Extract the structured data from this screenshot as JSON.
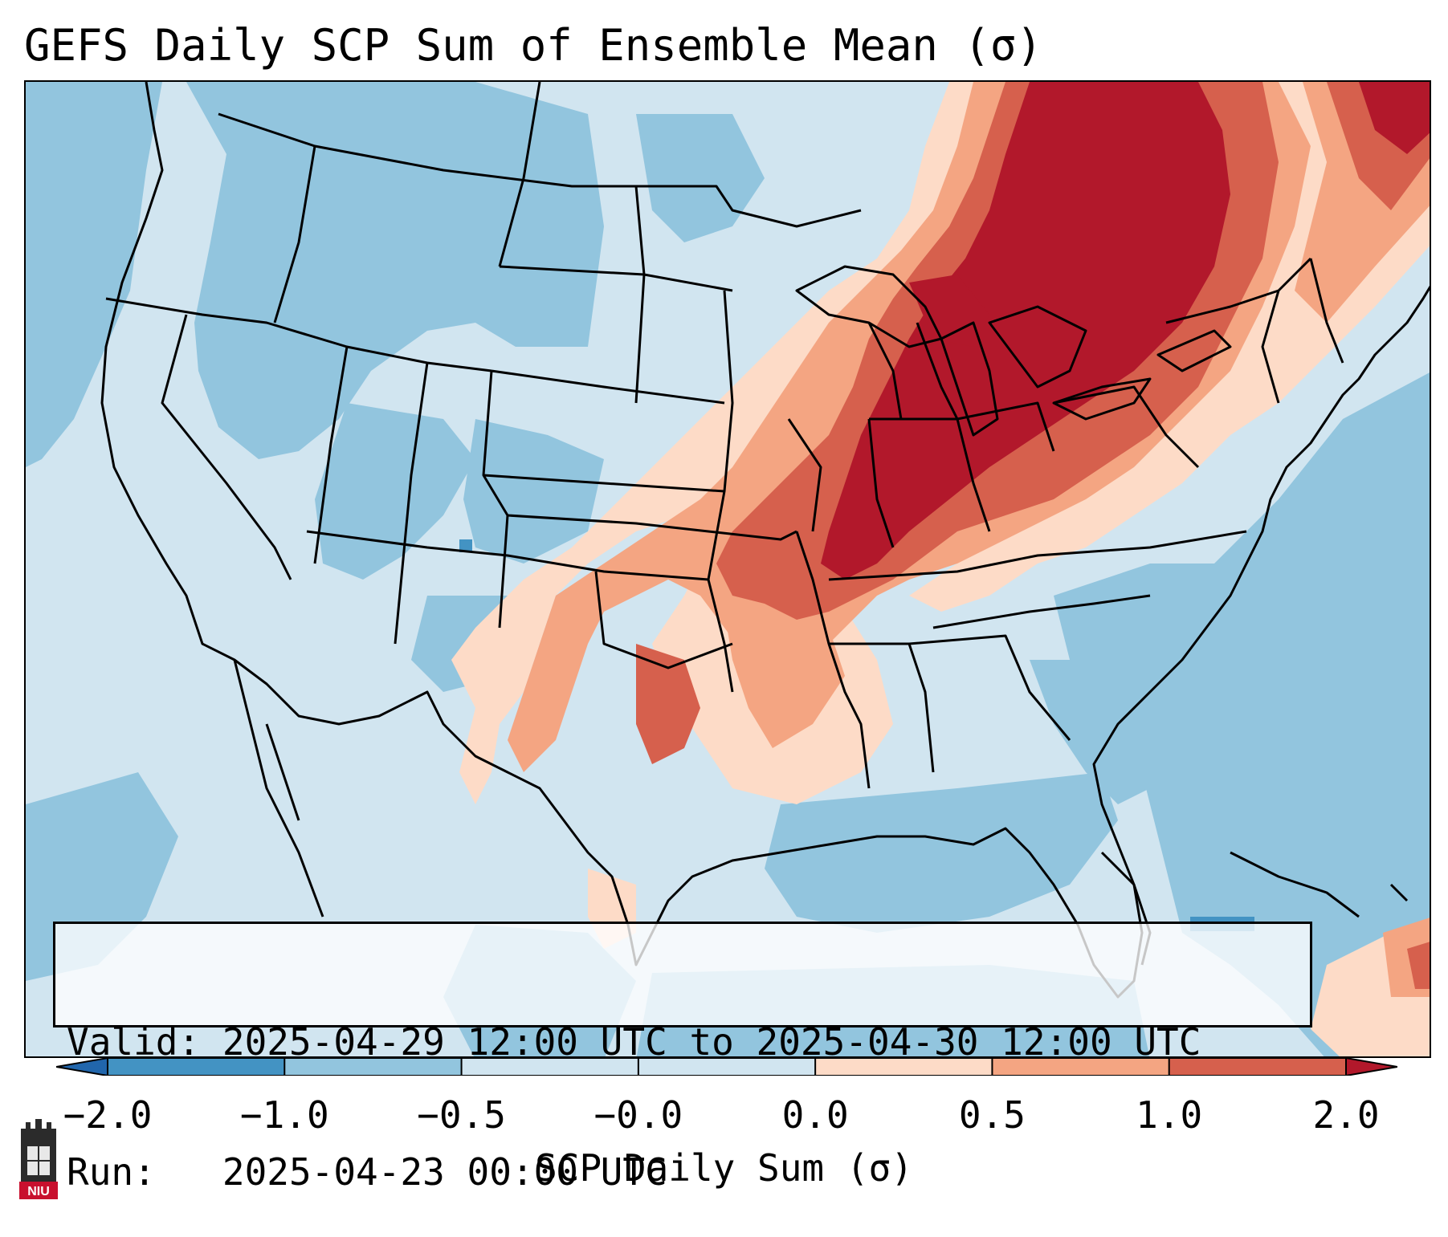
{
  "title": "GEFS Daily SCP Sum of Ensemble Mean (σ)",
  "info": {
    "valid_label": "Valid:",
    "valid_value": "2025-04-29 12:00 UTC to 2025-04-30 12:00 UTC",
    "run_label": "Run:",
    "run_value": "2025-04-23 00:00 UTC"
  },
  "colorbar": {
    "label": "SCP Daily Sum (σ)",
    "ticks": [
      "−2.0",
      "−1.0",
      "−0.5",
      "−0.0",
      "0.0",
      "0.5",
      "1.0",
      "2.0"
    ],
    "colors": [
      "#4393c3",
      "#92c5de",
      "#d1e5f0",
      "#d1e5f0",
      "#fddbc7",
      "#f4a582",
      "#d6604d",
      "#b2182b"
    ],
    "extend_low_color": "#2166ac",
    "extend_high_color": "#b2182b"
  },
  "legend_colors": {
    "strong_negative": "#4393c3",
    "negative": "#92c5de",
    "near_zero_negative": "#d1e5f0",
    "near_zero_positive": "#fddbc7",
    "positive": "#f4a582",
    "strong_positive": "#d6604d",
    "very_strong_positive": "#b2182b"
  },
  "logo": {
    "text": "NIU",
    "icon": "niu-logo-icon"
  }
}
